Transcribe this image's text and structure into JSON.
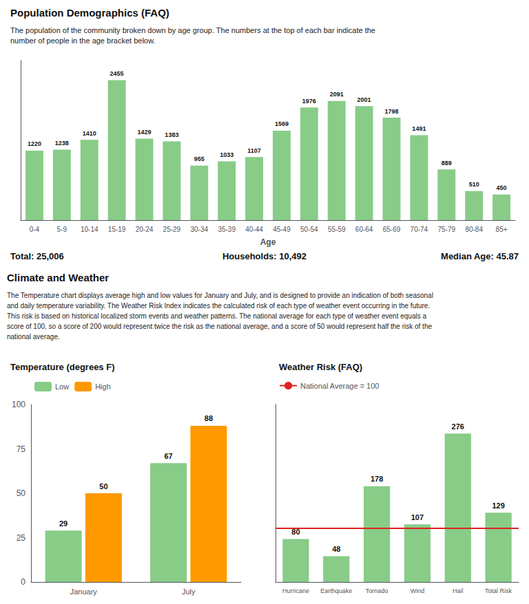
{
  "chart_data": [
    {
      "type": "bar",
      "title": "Population Demographics (FAQ)",
      "subtitle": "The population of the community broken down by age group. The numbers at the top of each bar indicate the\nnumber of people in the age bracket below.",
      "categories": [
        "0-4",
        "5-9",
        "10-14",
        "15-19",
        "20-24",
        "25-29",
        "30-34",
        "35-39",
        "40-44",
        "45-49",
        "50-54",
        "55-59",
        "60-64",
        "65-69",
        "70-74",
        "75-79",
        "80-84",
        "85+"
      ],
      "values": [
        1220,
        1238,
        1410,
        2455,
        1429,
        1383,
        955,
        1033,
        1107,
        1569,
        1976,
        2091,
        2001,
        1798,
        1491,
        889,
        510,
        450
      ],
      "color": "#88cc88",
      "xlabel": "Age",
      "ylim": [
        0,
        2800
      ],
      "tick_labels": "x",
      "data_labels": true,
      "grid": false,
      "annotations": [
        "Total: 25,006",
        "Households: 10,492",
        "Median Age: 45.87"
      ]
    },
    {
      "type": "bar",
      "title": "Temperature (degrees F)",
      "categories": [
        "January",
        "July"
      ],
      "series": [
        {
          "name": "Low",
          "color": "#88cc88",
          "values": [
            29,
            67
          ]
        },
        {
          "name": "High",
          "color": "#ff9900",
          "values": [
            50,
            88
          ]
        }
      ],
      "ylim": [
        0,
        100
      ],
      "yticks": [
        0,
        25,
        50,
        75,
        100
      ],
      "data_labels": true,
      "grid": false,
      "legend": "top",
      "annotations": [
        "Climate and Weather",
        "The Temperature chart displays average high and low values for January and July, and is designed to provide an indication of both seasonal\nand daily temperature variability. The Weather Risk Index indicates the calculated risk of each type of weather event occurring in the future.\nThis risk is based on historical localized storm events and weather patterns. The national average for each type of weather event equals a\nscore of 100, so a score of 200 would represent twice the risk as the national average, and a score of 50 would represent half the risk of the\nnational average."
      ]
    },
    {
      "type": "bar",
      "title": "Weather Risk (FAQ)",
      "categories": [
        "Hurricane",
        "Earthquake",
        "Tornado",
        "Wind",
        "Hail",
        "Total Risk"
      ],
      "values": [
        80,
        48,
        178,
        107,
        276,
        129
      ],
      "color": "#88cc88",
      "ylim": [
        0,
        330
      ],
      "tick_labels": "x",
      "data_labels": true,
      "grid": false,
      "legend": "top",
      "reference_line": {
        "value": 100,
        "label": "National Average = 100",
        "color": "#dd2222"
      }
    }
  ]
}
